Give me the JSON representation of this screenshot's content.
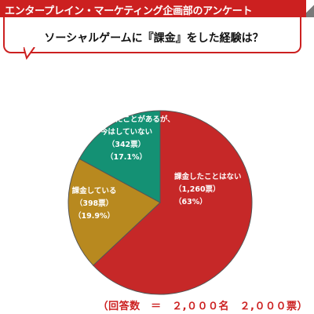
{
  "header": {
    "title": "エンタープレイン・マーケティング企画部のアンケート"
  },
  "question": {
    "text": "ソーシャルゲームに『課金』をした経験は？"
  },
  "colors": {
    "accent": "#cc2020",
    "slice_no": "#c62828",
    "slice_yes": "#b8891f",
    "slice_past": "#149174"
  },
  "chart_data": {
    "type": "pie",
    "total_respondents": 2000,
    "slices": [
      {
        "label_lines": [
          "課金したことはない",
          "（1,260票）",
          "（63%）"
        ],
        "votes": 1260,
        "percent": 63,
        "color": "#c62828"
      },
      {
        "label_lines": [
          "課金している",
          "（398票）",
          "（19.9%）"
        ],
        "votes": 398,
        "percent": 19.9,
        "color": "#b8891f"
      },
      {
        "label_lines": [
          "以前課金したことがあるが、",
          "今はしていない",
          "（342票）",
          "（17.1%）"
        ],
        "votes": 342,
        "percent": 17.1,
        "color": "#149174"
      }
    ]
  },
  "footer": {
    "text": "（回答数　＝　２,０００名　２,０００票）"
  }
}
